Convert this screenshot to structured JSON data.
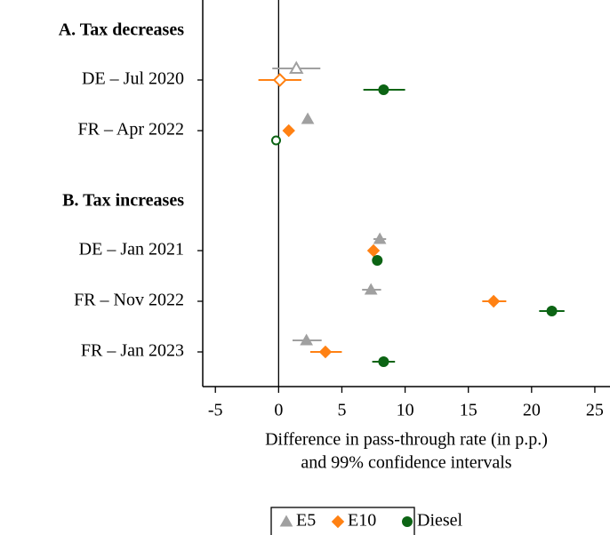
{
  "chart_data": {
    "type": "dot-errorbar",
    "groups": [
      {
        "name": "A. Tax decreases",
        "categories": [
          "DE – Jul 2020",
          "FR – Apr 2022"
        ]
      },
      {
        "name": "B. Tax increases",
        "categories": [
          "DE – Jan 2021",
          "FR – Nov 2022",
          "FR – Jan 2023"
        ]
      }
    ],
    "series": [
      {
        "name": "E5",
        "color": "#a0a0a0",
        "marker": "triangle",
        "values": [
          1.4,
          2.3,
          8.0,
          7.3,
          2.2
        ],
        "lower": [
          -0.5,
          2.1,
          7.5,
          6.6,
          1.1
        ],
        "upper": [
          3.3,
          2.5,
          8.5,
          8.1,
          3.4
        ],
        "hollow": [
          true,
          false,
          false,
          false,
          false
        ]
      },
      {
        "name": "E10",
        "color": "#ff8113",
        "marker": "diamond",
        "values": [
          0.1,
          0.8,
          7.5,
          17.0,
          3.7
        ],
        "lower": [
          -1.6,
          0.6,
          7.2,
          16.1,
          2.5
        ],
        "upper": [
          1.8,
          1.0,
          7.8,
          18.0,
          5.0
        ],
        "hollow": [
          true,
          false,
          false,
          false,
          false
        ]
      },
      {
        "name": "Diesel",
        "color": "#0c6414",
        "marker": "circle",
        "values": [
          8.3,
          -0.2,
          7.8,
          21.6,
          8.3
        ],
        "lower": [
          6.7,
          -0.5,
          7.6,
          20.6,
          7.4
        ],
        "upper": [
          10.0,
          0.1,
          8.0,
          22.6,
          9.2
        ],
        "hollow": [
          false,
          true,
          false,
          false,
          false
        ]
      }
    ],
    "xlim": [
      -6,
      26.2
    ],
    "xticks": [
      -5,
      0,
      5,
      10,
      15,
      20,
      25
    ],
    "reference_line": 0,
    "xlabel": [
      "Difference in pass-through rate (in p.p.)",
      "and 99% confidence intervals"
    ],
    "legend": "bottom"
  }
}
